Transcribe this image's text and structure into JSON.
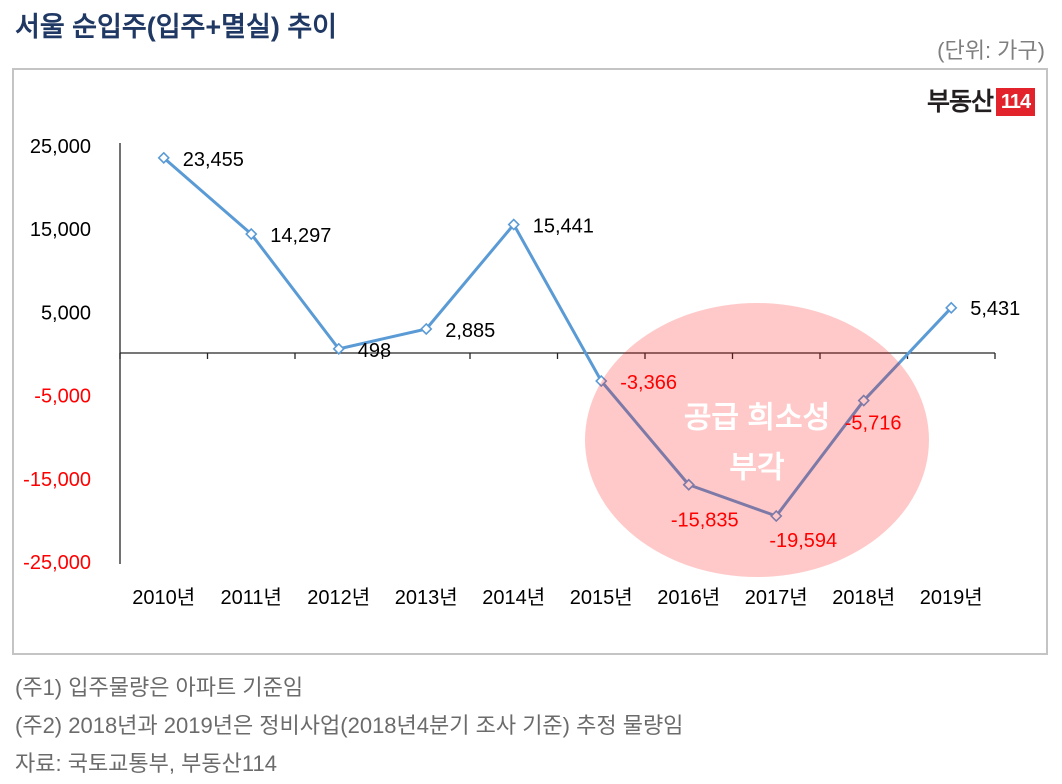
{
  "chart_data": {
    "type": "line",
    "title": "서울 순입주(입주+멸실) 추이",
    "unit": "(단위: 가구)",
    "categories": [
      "2010년",
      "2011년",
      "2012년",
      "2013년",
      "2014년",
      "2015년",
      "2016년",
      "2017년",
      "2018년",
      "2019년"
    ],
    "series": [
      {
        "values": [
          23455,
          14297,
          498,
          2885,
          15441,
          -3366,
          -15835,
          -19594,
          -5716,
          5431
        ],
        "labels": [
          "23,455",
          "14,297",
          "498",
          "2,885",
          "15,441",
          "-3,366",
          "-15,835",
          "-19,594",
          "-5,716",
          "5,431"
        ],
        "color": "#5b9bd5"
      }
    ],
    "ylim": [
      -25000,
      25000
    ],
    "y_ticks": [
      "25,000",
      "15,000",
      "5,000",
      "-5,000",
      "-15,000",
      "-25,000"
    ],
    "grid": false,
    "negative_color": "#ff0000",
    "annotation": {
      "lines": [
        "공급 희소성",
        "부각"
      ],
      "fill_color": "#ff0000",
      "text_color": "#ffffff"
    }
  },
  "logo": {
    "text": "부동산",
    "badge": "114",
    "badge_color": "#e3232b"
  },
  "notes": [
    "(주1) 입주물량은 아파트 기준임",
    "(주2) 2018년과 2019년은 정비사업(2018년4분기 조사 기준) 추정 물량임",
    "자료: 국토교통부, 부동산114"
  ]
}
